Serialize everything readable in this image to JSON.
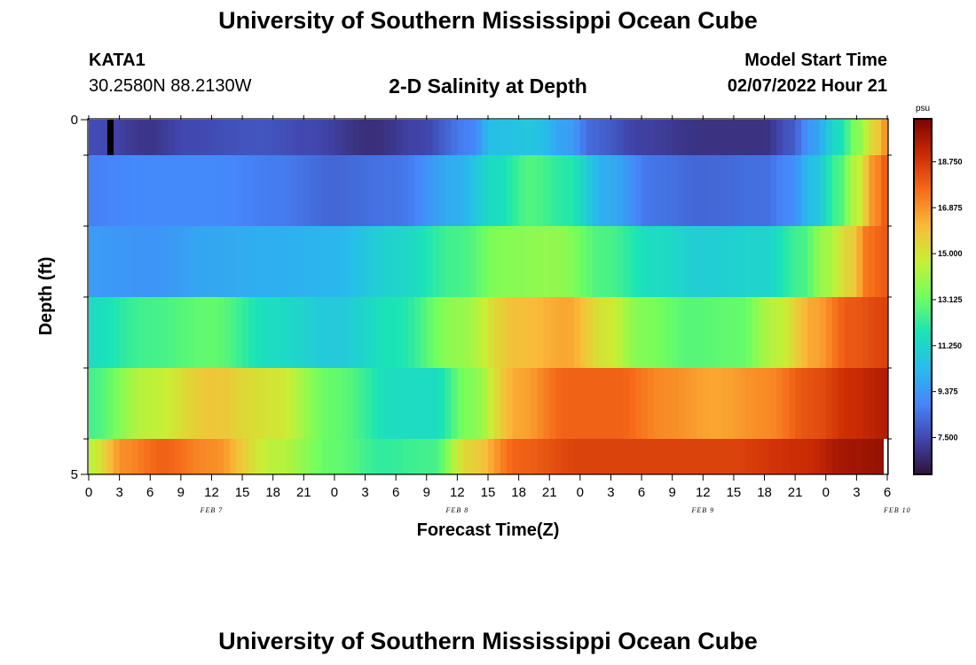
{
  "header": {
    "title": "University of Southern Mississippi Ocean Cube",
    "station": "KATA1",
    "coords": "30.2580N  88.2130W",
    "subtitle": "2-D Salinity at Depth",
    "model_start_label": "Model Start Time",
    "model_start_value": "02/07/2022 Hour 21"
  },
  "footer": {
    "title": "University of Southern Mississippi Ocean Cube"
  },
  "chart_data": {
    "type": "heatmap",
    "title": "2-D Salinity at Depth",
    "xlabel": "Forecast Time(Z)",
    "ylabel": "Depth (ft)",
    "y_ticks": [
      "0",
      "5"
    ],
    "ylim": [
      0,
      5
    ],
    "x_tick_labels": [
      "0",
      "3",
      "6",
      "9",
      "12",
      "15",
      "18",
      "21",
      "0",
      "3",
      "6",
      "9",
      "12",
      "15",
      "18",
      "21",
      "0",
      "3",
      "6",
      "9",
      "12",
      "15",
      "18",
      "21",
      "0",
      "3",
      "6"
    ],
    "day_labels": [
      "FEB 7",
      "FEB 8",
      "FEB 9",
      "FEB 10"
    ],
    "colorbar": {
      "unit": "psu",
      "ticks": [
        "18.750",
        "16.875",
        "15.000",
        "13.125",
        "11.250",
        "9.375",
        "7.500"
      ],
      "range": [
        6.0,
        20.5
      ],
      "colors": [
        "#30123b",
        "#4146ad",
        "#4686fb",
        "#28bceb",
        "#1ae4b6",
        "#72fe5e",
        "#c8ef34",
        "#faba39",
        "#f66b19",
        "#cb2a04",
        "#7a0403"
      ]
    },
    "rows": [
      {
        "depth": "0-0.5 ft",
        "knots": [
          [
            0,
            7.6
          ],
          [
            10,
            7.0
          ],
          [
            16,
            7.5
          ],
          [
            28,
            7.8
          ],
          [
            36,
            7.5
          ],
          [
            46,
            6.8
          ],
          [
            54,
            7.4
          ],
          [
            62,
            8.8
          ],
          [
            66,
            10.5
          ],
          [
            72,
            10.7
          ],
          [
            78,
            9.6
          ],
          [
            82,
            8.2
          ],
          [
            90,
            7.3
          ],
          [
            100,
            6.9
          ],
          [
            110,
            6.9
          ],
          [
            114,
            7.8
          ],
          [
            118,
            9.5
          ],
          [
            122,
            11.5
          ],
          [
            125,
            13.5
          ],
          [
            128,
            15.5
          ],
          [
            130,
            17.0
          ]
        ]
      },
      {
        "depth": "0.5-1.5 ft",
        "knots": [
          [
            0,
            8.8
          ],
          [
            10,
            9.0
          ],
          [
            20,
            9.0
          ],
          [
            30,
            8.7
          ],
          [
            40,
            8.2
          ],
          [
            50,
            8.5
          ],
          [
            60,
            10.0
          ],
          [
            66,
            11.5
          ],
          [
            72,
            12.7
          ],
          [
            78,
            12.0
          ],
          [
            84,
            10.0
          ],
          [
            92,
            8.5
          ],
          [
            100,
            8.2
          ],
          [
            110,
            8.4
          ],
          [
            114,
            9.0
          ],
          [
            118,
            10.5
          ],
          [
            122,
            12.5
          ],
          [
            125,
            14.5
          ],
          [
            128,
            17.0
          ],
          [
            130,
            18.0
          ]
        ]
      },
      {
        "depth": "1.5-2.5 ft",
        "knots": [
          [
            0,
            9.5
          ],
          [
            10,
            9.3
          ],
          [
            20,
            9.8
          ],
          [
            30,
            10.0
          ],
          [
            40,
            10.2
          ],
          [
            50,
            11.2
          ],
          [
            60,
            12.5
          ],
          [
            68,
            13.6
          ],
          [
            76,
            13.8
          ],
          [
            84,
            12.6
          ],
          [
            92,
            11.5
          ],
          [
            100,
            11.0
          ],
          [
            110,
            11.2
          ],
          [
            116,
            12.5
          ],
          [
            120,
            14.0
          ],
          [
            124,
            15.5
          ],
          [
            127,
            17.5
          ],
          [
            130,
            18.0
          ]
        ]
      },
      {
        "depth": "2.5-3.5 ft",
        "knots": [
          [
            0,
            11.5
          ],
          [
            10,
            12.5
          ],
          [
            20,
            13.0
          ],
          [
            30,
            11.5
          ],
          [
            40,
            10.8
          ],
          [
            50,
            11.8
          ],
          [
            60,
            13.8
          ],
          [
            70,
            16.0
          ],
          [
            78,
            16.5
          ],
          [
            84,
            15.0
          ],
          [
            90,
            13.5
          ],
          [
            98,
            12.8
          ],
          [
            106,
            13.0
          ],
          [
            112,
            14.5
          ],
          [
            118,
            16.5
          ],
          [
            124,
            18.0
          ],
          [
            130,
            18.5
          ]
        ]
      },
      {
        "depth": "3.5-4.5 ft",
        "knots": [
          [
            0,
            12.5
          ],
          [
            10,
            14.5
          ],
          [
            20,
            15.8
          ],
          [
            30,
            15.0
          ],
          [
            40,
            13.0
          ],
          [
            50,
            11.5
          ],
          [
            56,
            11.5
          ],
          [
            62,
            13.5
          ],
          [
            70,
            16.5
          ],
          [
            78,
            17.8
          ],
          [
            86,
            17.8
          ],
          [
            94,
            17.0
          ],
          [
            102,
            16.5
          ],
          [
            110,
            17.0
          ],
          [
            118,
            18.2
          ],
          [
            124,
            19.0
          ],
          [
            130,
            19.5
          ]
        ]
      },
      {
        "depth": "4.5-5 ft",
        "knots": [
          [
            0,
            14.5
          ],
          [
            6,
            17.0
          ],
          [
            12,
            17.8
          ],
          [
            20,
            17.0
          ],
          [
            30,
            14.5
          ],
          [
            40,
            13.0
          ],
          [
            48,
            12.2
          ],
          [
            56,
            12.5
          ],
          [
            62,
            15.5
          ],
          [
            70,
            17.8
          ],
          [
            80,
            18.5
          ],
          [
            92,
            18.5
          ],
          [
            104,
            18.5
          ],
          [
            116,
            19.0
          ],
          [
            124,
            19.8
          ],
          [
            130,
            20.0
          ]
        ]
      }
    ]
  }
}
